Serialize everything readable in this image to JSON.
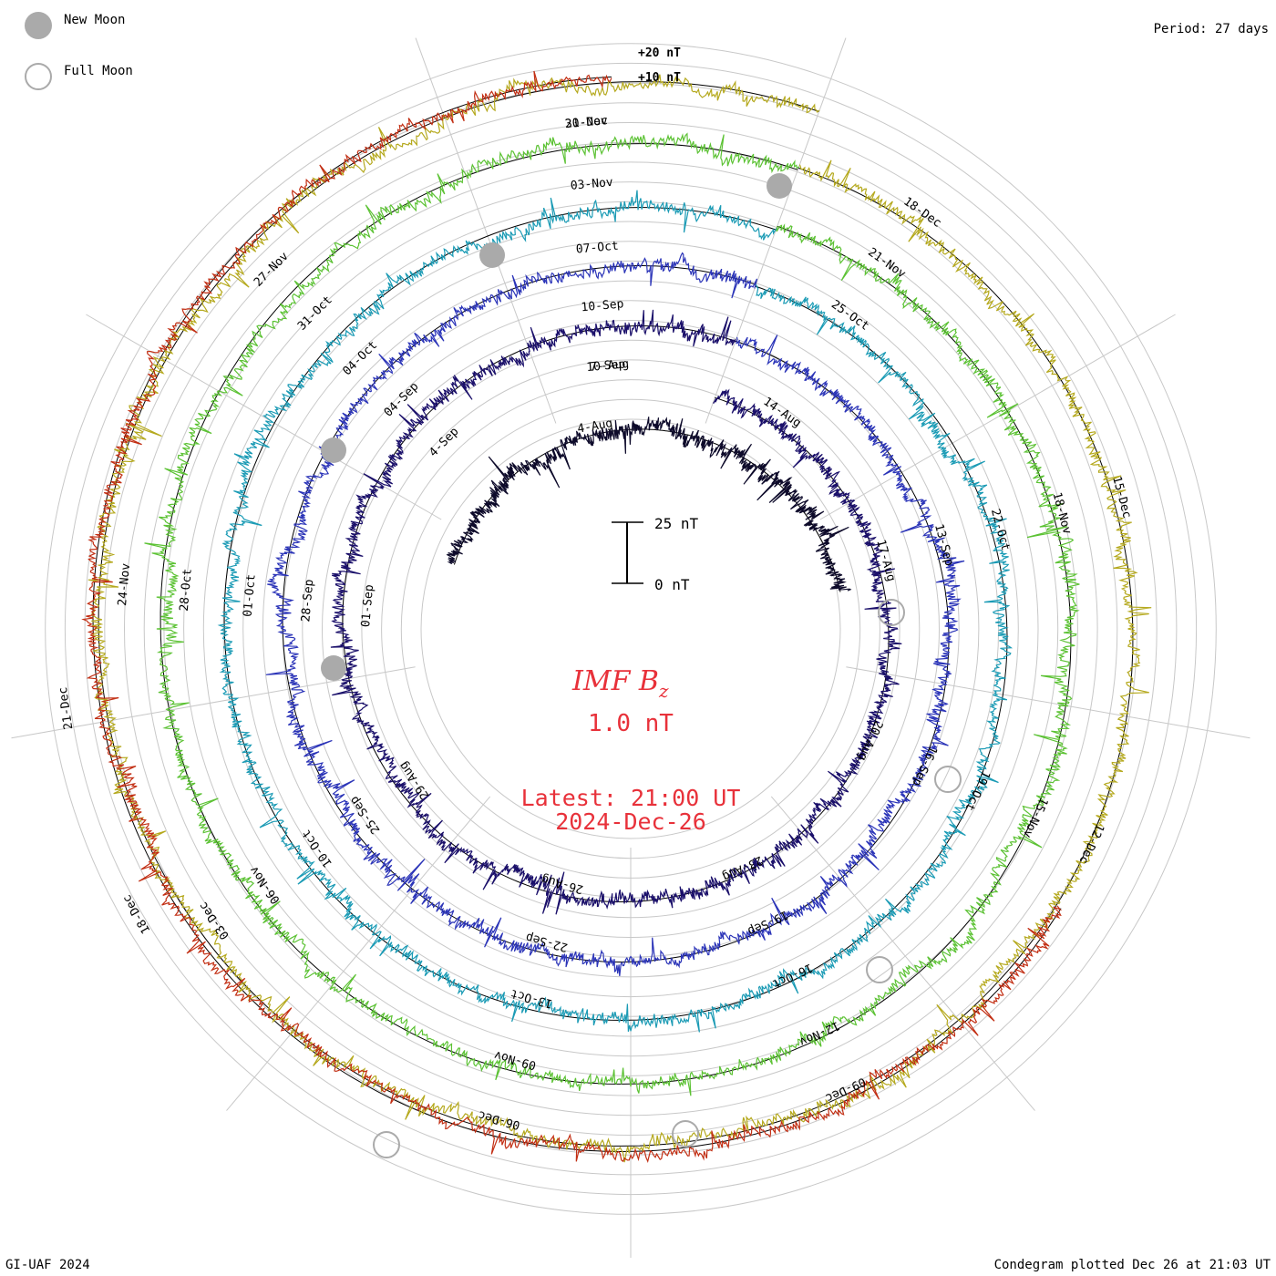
{
  "legend": {
    "new_moon": "New Moon",
    "full_moon": "Full Moon",
    "new_moon_color": "#aaaaaa",
    "full_moon_color": "#aaaaaa"
  },
  "period_label": "Period: 27 days",
  "credit": "GI-UAF 2024",
  "plotted_label": "Condegram plotted Dec 26 at 21:03 UT",
  "center": {
    "title_main": "IMF B",
    "title_sub": "z",
    "current_value": "1.0 nT",
    "latest_time": "Latest: 21:00 UT",
    "latest_date": "2024-Dec-26"
  },
  "scale_bar": {
    "top_label": "25 nT",
    "bottom_label": "0 nT"
  },
  "ref_labels": [
    "+20 nT",
    "+10 nT"
  ],
  "chart_data": {
    "type": "line",
    "subtype": "spiral condegram",
    "period_days": 27,
    "unit": "nT",
    "rings": [
      {
        "color": "#0d0a2a",
        "dates": [
          "4-Aug"
        ],
        "amplitude": 14
      },
      {
        "color": "#1a0f6a",
        "dates": [
          "7-Sep",
          "4-Sep",
          "01-Sep",
          "29-Aug",
          "26-Aug",
          "23-Aug",
          "20-Aug",
          "17-Aug",
          "14-Aug",
          "10-Aug"
        ],
        "amplitude": 12
      },
      {
        "color": "#2b34b8",
        "dates": [
          "10-Sep",
          "04-Sep",
          "28-Sep",
          "25-Sep",
          "22-Sep",
          "19-Sep",
          "16-Sep",
          "13-Sep"
        ],
        "amplitude": 12
      },
      {
        "color": "#1b9bb5",
        "dates": [
          "07-Oct",
          "04-Oct",
          "01-Oct",
          "10-Oct",
          "13-Oct",
          "16-Oct",
          "19-Oct",
          "22-Oct",
          "25-Oct"
        ],
        "amplitude": 11
      },
      {
        "color": "#5cc234",
        "dates": [
          "03-Nov",
          "31-Oct",
          "28-Oct",
          "06-Nov",
          "09-Nov",
          "12-Nov",
          "15-Nov",
          "18-Nov",
          "21-Nov"
        ],
        "amplitude": 12
      },
      {
        "color": "#b5a91e",
        "dates": [
          "30-Nov",
          "27-Nov",
          "24-Nov",
          "03-Dec",
          "06-Dec",
          "09-Dec",
          "12-Dec",
          "15-Dec",
          "18-Dec",
          "21-Dec"
        ],
        "amplitude": 11
      },
      {
        "color": "#c22f14",
        "dates": [
          "21-Dec",
          "18-Dec"
        ],
        "amplitude": 11
      }
    ],
    "new_moons": [
      "01-Sep",
      "03-Oct",
      "01-Nov",
      "01-Dec"
    ],
    "full_moons": [
      "18-Aug",
      "17-Sep",
      "17-Oct",
      "15-Nov",
      "15-Dec"
    ]
  }
}
